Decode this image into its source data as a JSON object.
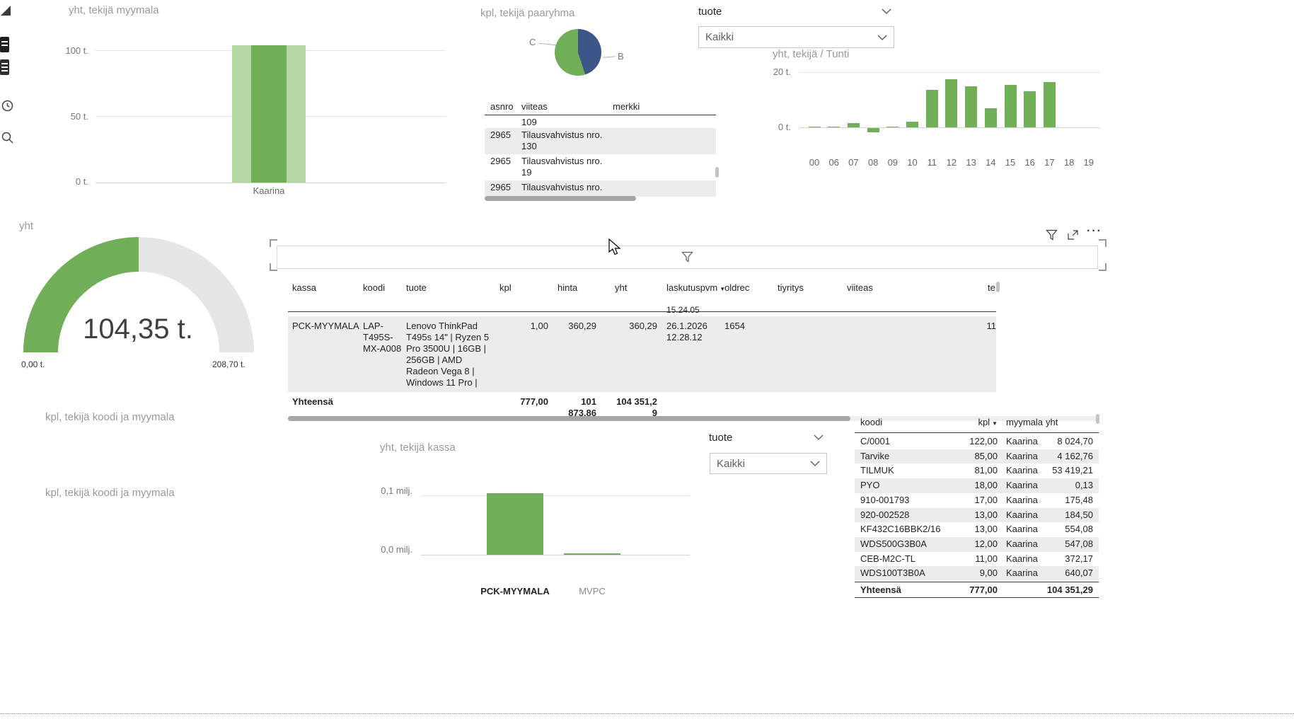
{
  "colors": {
    "green": "#71AE58",
    "green_light": "#B5D7A4",
    "blue": "#3D5589",
    "gray_text": "#8A8A8A",
    "dark_text": "#252423",
    "row_alt": "#ECECEC"
  },
  "sidebar": {
    "icons": [
      "collapse-icon",
      "report-page-icon",
      "layers-icon",
      "clock-icon",
      "search-icon"
    ]
  },
  "filters": {
    "tuote_top": {
      "label": "tuote",
      "value": "Kaikki"
    },
    "tuote_bottom": {
      "label": "tuote",
      "value": "Kaikki"
    }
  },
  "static_labels": {
    "panel1": "kpl, tekijä koodi ja myymala",
    "panel2": "kpl, tekijä koodi ja myymala"
  },
  "chart_data": [
    {
      "id": "myymala",
      "type": "bar",
      "title": "yht, tekijä myymala",
      "categories": [
        "Kaarina"
      ],
      "values": [
        104.35
      ],
      "unit": "t.",
      "yticks": [
        {
          "label": "100 t.",
          "value": 100
        },
        {
          "label": "50 t.",
          "value": 50
        },
        {
          "label": "0 t.",
          "value": 0
        }
      ],
      "ylim": [
        0,
        110
      ]
    },
    {
      "id": "paaryhma",
      "type": "pie",
      "title": "kpl, tekijä paaryhma",
      "slices": [
        {
          "label": "B",
          "pct": 45,
          "color": "#3D5589"
        },
        {
          "label": "C",
          "pct": 55,
          "color": "#71AE58"
        }
      ]
    },
    {
      "id": "tunti",
      "type": "bar",
      "title": "yht, tekijä / Tunti",
      "categories": [
        "00",
        "06",
        "07",
        "08",
        "09",
        "10",
        "11",
        "12",
        "13",
        "14",
        "15",
        "16",
        "17",
        "18",
        "19"
      ],
      "values": [
        0.3,
        0.2,
        1.5,
        -1.5,
        0.3,
        2,
        13.5,
        17.5,
        15,
        7,
        15.5,
        13,
        16.5,
        0,
        0
      ],
      "unit": "t.",
      "yticks": [
        {
          "label": "20 t.",
          "value": 20
        },
        {
          "label": "0 t.",
          "value": 0
        }
      ],
      "ylim": [
        -2,
        20
      ]
    },
    {
      "id": "kassa",
      "type": "bar",
      "title": "yht, tekijä kassa",
      "categories": [
        "PCK-MYYMALA",
        "MVPC"
      ],
      "values": [
        0.104,
        0.002
      ],
      "unit": "milj.",
      "selected_category": "PCK-MYYMALA",
      "yticks": [
        {
          "label": "0,1 milj.",
          "value": 0.1
        },
        {
          "label": "0,0 milj.",
          "value": 0
        }
      ],
      "ylim": [
        0,
        0.11
      ]
    },
    {
      "id": "gauge",
      "type": "gauge",
      "title": "yht",
      "value_label": "104,35 t.",
      "min_label": "0,00 t.",
      "max_label": "208,70 t.",
      "fraction": 0.5
    }
  ],
  "orders_table": {
    "columns": [
      "asnro",
      "viiteas",
      "merkki"
    ],
    "rows": [
      {
        "asnro": "",
        "viiteas": "109",
        "merkki": ""
      },
      {
        "asnro": "2965",
        "viiteas": "Tilausvahvistus nro. 130",
        "merkki": ""
      },
      {
        "asnro": "2965",
        "viiteas": "Tilausvahvistus nro. 19",
        "merkki": ""
      },
      {
        "asnro": "2965",
        "viiteas": "Tilausvahvistus nro.",
        "merkki": ""
      }
    ]
  },
  "main_table": {
    "columns": [
      "kassa",
      "koodi",
      "tuote",
      "kpl",
      "hinta",
      "yht",
      "laskutuspvm",
      "oldrec",
      "tiyritys",
      "viiteas",
      "te"
    ],
    "sort_column": "laskutuspvm",
    "partial_time": "15.24.05",
    "rows": [
      {
        "kassa": "PCK-MYYMALA",
        "koodi": "LAP-T495S-MX-A008",
        "tuote": "Lenovo ThinkPad T495s 14\" | Ryzen 5 Pro 3500U | 16GB | 256GB | AMD Radeon Vega 8 | Windows 11 Pro |",
        "kpl": "1,00",
        "hinta": "360,29",
        "yht": "360,29",
        "laskutuspvm": "26.1.2026 12.28.12",
        "oldrec": "1654",
        "tiyritys": "",
        "viiteas": "",
        "te": "11"
      }
    ],
    "totals": {
      "label": "Yhteensä",
      "kpl": "777,00",
      "hinta": "101 873,86",
      "yht": "104 351,29"
    }
  },
  "summary_table": {
    "columns": [
      "koodi",
      "kpl",
      "myymala",
      "yht"
    ],
    "sort_column": "kpl",
    "rows": [
      {
        "koodi": "C/0001",
        "kpl": "122,00",
        "myymala": "Kaarina",
        "yht": "8 024,70"
      },
      {
        "koodi": "Tarvike",
        "kpl": "85,00",
        "myymala": "Kaarina",
        "yht": "4 162,76"
      },
      {
        "koodi": "TILMUK",
        "kpl": "81,00",
        "myymala": "Kaarina",
        "yht": "53 419,21"
      },
      {
        "koodi": "PYO",
        "kpl": "18,00",
        "myymala": "Kaarina",
        "yht": "0,13"
      },
      {
        "koodi": "910-001793",
        "kpl": "17,00",
        "myymala": "Kaarina",
        "yht": "175,48"
      },
      {
        "koodi": "920-002528",
        "kpl": "13,00",
        "myymala": "Kaarina",
        "yht": "184,50"
      },
      {
        "koodi": "KF432C16BBK2/16",
        "kpl": "13,00",
        "myymala": "Kaarina",
        "yht": "554,08"
      },
      {
        "koodi": "WDS500G3B0A",
        "kpl": "12,00",
        "myymala": "Kaarina",
        "yht": "547,08"
      },
      {
        "koodi": "CEB-M2C-TL",
        "kpl": "11,00",
        "myymala": "Kaarina",
        "yht": "372,17"
      },
      {
        "koodi": "WDS100T3B0A",
        "kpl": "9,00",
        "myymala": "Kaarina",
        "yht": "640,07"
      }
    ],
    "totals": {
      "koodi": "Yhteensä",
      "kpl": "777,00",
      "myymala": "",
      "yht": "104 351,29"
    }
  }
}
